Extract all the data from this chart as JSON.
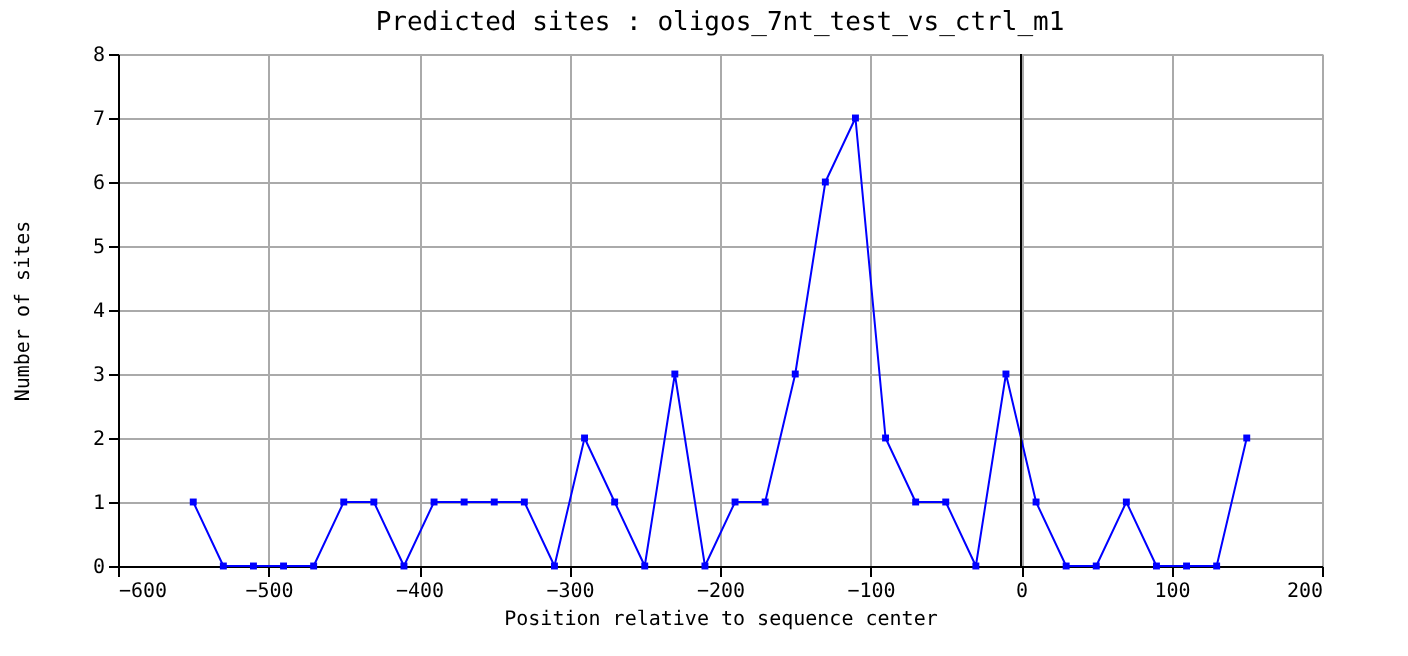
{
  "chart_data": {
    "type": "line",
    "title": "Predicted sites : oligos_7nt_test_vs_ctrl_m1",
    "xlabel": "Position relative to sequence center",
    "ylabel": "Number of sites",
    "x": [
      -550,
      -530,
      -510,
      -490,
      -470,
      -450,
      -430,
      -410,
      -390,
      -370,
      -350,
      -330,
      -310,
      -290,
      -270,
      -250,
      -230,
      -210,
      -190,
      -170,
      -150,
      -130,
      -110,
      -90,
      -70,
      -50,
      -30,
      -10,
      10,
      30,
      50,
      70,
      90,
      110,
      130,
      150
    ],
    "series": [
      {
        "color": "#0000ff",
        "values": [
          1,
          0,
          0,
          0,
          0,
          1,
          1,
          0,
          1,
          1,
          1,
          1,
          0,
          2,
          1,
          0,
          3,
          0,
          1,
          1,
          3,
          6,
          7,
          2,
          1,
          1,
          0,
          3,
          1,
          0,
          0,
          1,
          0,
          0,
          0,
          2
        ]
      }
    ],
    "xlim": [
      -600,
      200
    ],
    "xticks": [
      -600,
      -500,
      -400,
      -300,
      -200,
      -100,
      0,
      100,
      200
    ],
    "ylim": [
      0,
      8
    ],
    "yticks": [
      0,
      1,
      2,
      3,
      4,
      5,
      6,
      7,
      8
    ],
    "ref_lines": [
      {
        "axis": "x",
        "value": 0,
        "color": "#000000"
      }
    ],
    "grid": true,
    "marker": "square",
    "line_style": "solid"
  }
}
